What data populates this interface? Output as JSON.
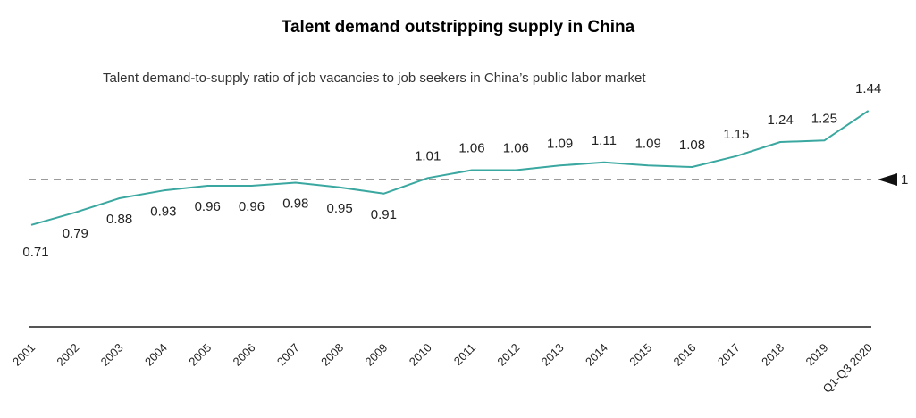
{
  "chart_data": {
    "type": "line",
    "title": "Talent demand outstripping supply in China",
    "subtitle": "Talent demand-to-supply ratio of job vacancies to job seekers in China’s public labor market",
    "categories": [
      "2001",
      "2002",
      "2003",
      "2004",
      "2005",
      "2006",
      "2007",
      "2008",
      "2009",
      "2010",
      "2011",
      "2012",
      "2013",
      "2014",
      "2015",
      "2016",
      "2017",
      "2018",
      "2019",
      "Q1-Q3 2020"
    ],
    "values": [
      0.71,
      0.79,
      0.88,
      0.93,
      0.96,
      0.96,
      0.98,
      0.95,
      0.91,
      1.01,
      1.06,
      1.06,
      1.09,
      1.11,
      1.09,
      1.08,
      1.15,
      1.24,
      1.25,
      1.44
    ],
    "reference_line": {
      "value": 1,
      "label": "1",
      "style": "dashed"
    },
    "line_color": "#3aa8a0",
    "reference_color": "#9a9a9a",
    "axis_color": "#555555"
  }
}
